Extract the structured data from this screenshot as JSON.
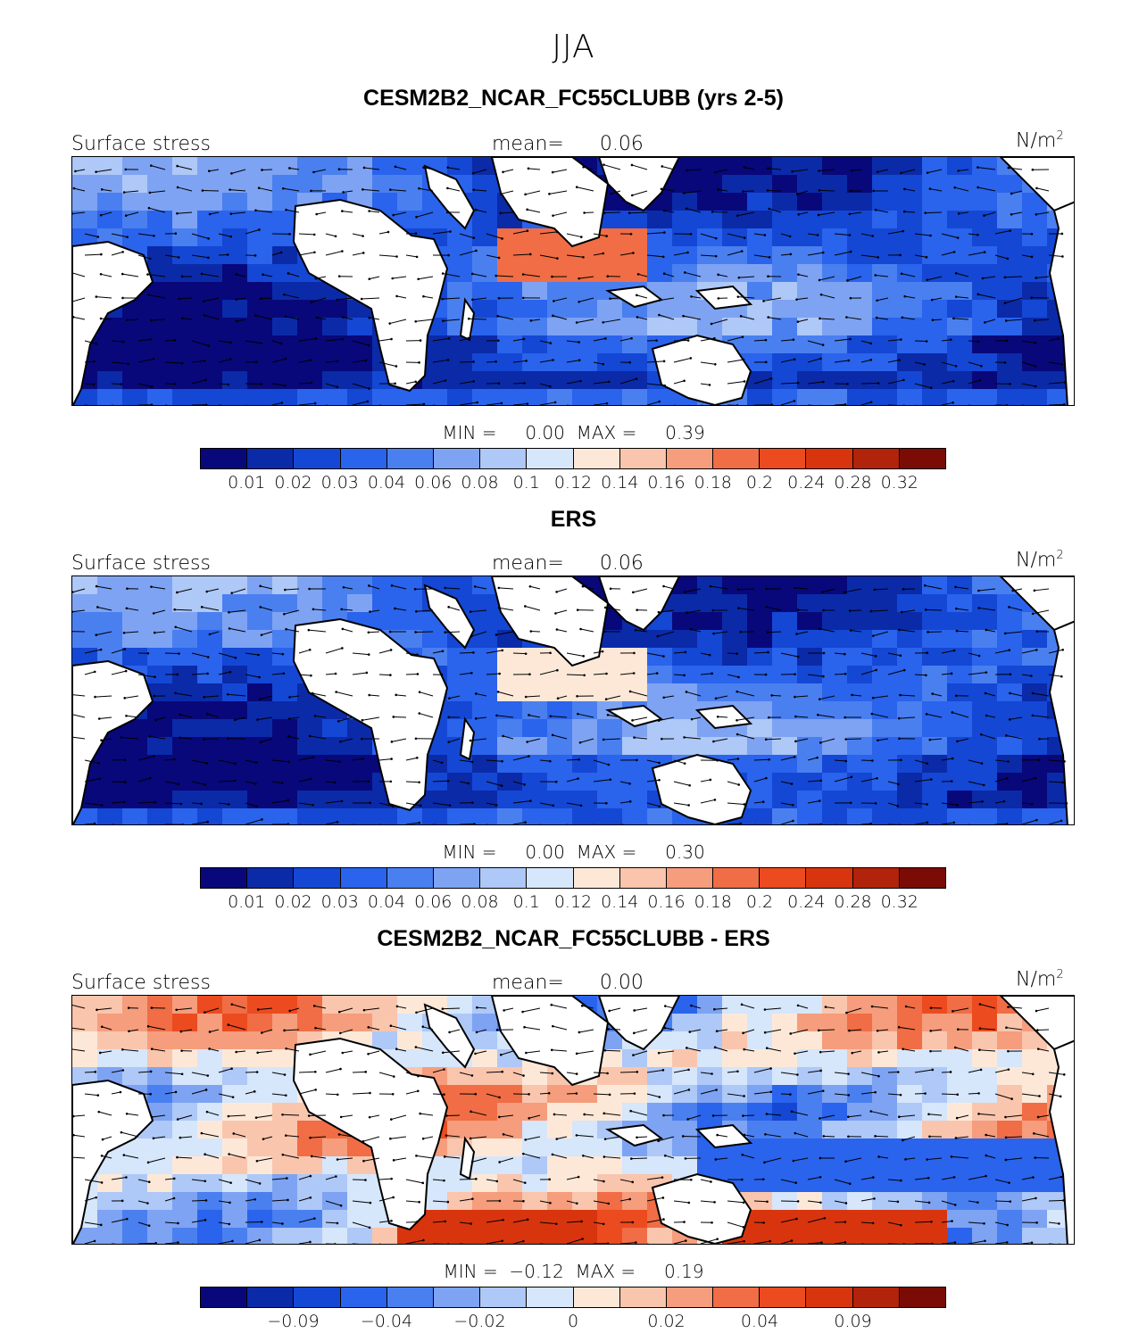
{
  "figure": {
    "season": "JJA",
    "colorbar_colors": [
      "#08087a",
      "#0b2aa8",
      "#1447d4",
      "#2a63ec",
      "#4a7ff0",
      "#7ea3f3",
      "#aec8f7",
      "#d6e6fb",
      "#fde8d8",
      "#fac5ad",
      "#f59d7c",
      "#f06d45",
      "#ec4a1f",
      "#d8350f",
      "#b2230b",
      "#7a0b05"
    ]
  },
  "chart_data": [
    {
      "type": "heatmap",
      "title": "CESM2B2_NCAR_FC55CLUBB (yrs 2-5)",
      "variable_label": "Surface stress",
      "mean_label": "mean=",
      "mean_value": "0.06",
      "units_base": "N/m",
      "units_exp": "2",
      "min_label": "MIN =",
      "min_value": "0.00",
      "max_label": "MAX =",
      "max_value": "0.39",
      "colorbar_ticks": [
        "0.01",
        "0.02",
        "0.03",
        "0.04",
        "0.06",
        "0.08",
        "0.1",
        "0.12",
        "0.14",
        "0.16",
        "0.18",
        "0.2",
        "0.24",
        "0.28",
        "0.32"
      ]
    },
    {
      "type": "heatmap",
      "title": "ERS",
      "variable_label": "Surface stress",
      "mean_label": "mean=",
      "mean_value": "0.06",
      "units_base": "N/m",
      "units_exp": "2",
      "min_label": "MIN =",
      "min_value": "0.00",
      "max_label": "MAX =",
      "max_value": "0.30",
      "colorbar_ticks": [
        "0.01",
        "0.02",
        "0.03",
        "0.04",
        "0.06",
        "0.08",
        "0.1",
        "0.12",
        "0.14",
        "0.16",
        "0.18",
        "0.2",
        "0.24",
        "0.28",
        "0.32"
      ]
    },
    {
      "type": "heatmap",
      "title": "CESM2B2_NCAR_FC55CLUBB - ERS",
      "variable_label": "Surface stress",
      "mean_label": "mean=",
      "mean_value": "0.00",
      "units_base": "N/m",
      "units_exp": "2",
      "min_label": "MIN =",
      "min_value": "−0.12",
      "max_label": "MAX =",
      "max_value": "0.19",
      "colorbar_ticks": [
        "−0.09",
        "−0.04",
        "−0.02",
        "0",
        "0.02",
        "0.04",
        "0.09"
      ]
    }
  ]
}
